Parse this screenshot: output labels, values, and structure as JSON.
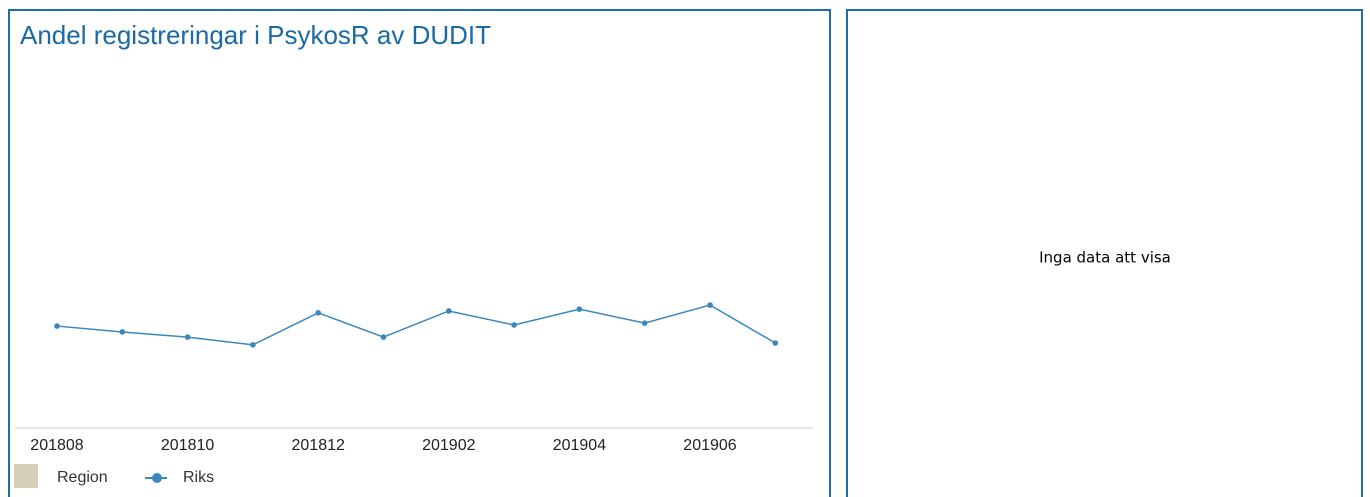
{
  "chart_data": {
    "type": "line",
    "title": "Andel registreringar i PsykosR av DUDIT",
    "categories": [
      "201808",
      null,
      "201810",
      null,
      "201812",
      null,
      "201902",
      null,
      "201904",
      null,
      "201906",
      null
    ],
    "series": [
      {
        "name": "Region",
        "color": "#d8cfb8",
        "values": [
          null,
          null,
          null,
          null,
          null,
          null,
          null,
          null,
          null,
          null,
          null,
          null
        ]
      },
      {
        "name": "Riks",
        "color": "#3a87c0",
        "values": [
          27.7,
          26.1,
          24.7,
          22.6,
          31.3,
          24.7,
          31.8,
          28.0,
          32.3,
          28.5,
          33.4,
          23.1
        ]
      }
    ],
    "ylim": [
      0,
      100
    ],
    "grid": false
  },
  "side_panel": {
    "message": "Inga data att visa"
  }
}
